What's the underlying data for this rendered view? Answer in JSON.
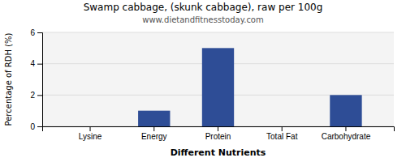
{
  "chart_data": {
    "type": "bar",
    "title": "Swamp cabbage, (skunk cabbage), raw per 100g",
    "subtitle": "www.dietandfitnesstoday.com",
    "xlabel": "Different Nutrients",
    "ylabel": "Percentage of RDH (%)",
    "categories": [
      "Lysine",
      "Energy",
      "Protein",
      "Total Fat",
      "Carbohydrate"
    ],
    "values": [
      0.0,
      1.0,
      5.0,
      0.0,
      2.0
    ],
    "color": "#2e4d96",
    "ylim": [
      0,
      6
    ],
    "yticks": [
      0,
      2,
      4,
      6
    ],
    "grid": true
  }
}
